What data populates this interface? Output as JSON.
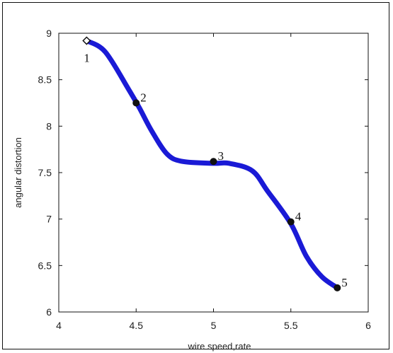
{
  "chart_data": {
    "type": "line",
    "title": "",
    "xlabel": "wire speed,rate",
    "ylabel": "angular distortion",
    "xlim": [
      4,
      6
    ],
    "ylim": [
      6,
      9
    ],
    "xticks": [
      "4",
      "4.5",
      "5",
      "5.5",
      "6"
    ],
    "yticks": [
      "6",
      "6.5",
      "7",
      "7.5",
      "8",
      "8.5",
      "9"
    ],
    "grid": false,
    "series": [
      {
        "color": "#1a1ad6",
        "x": [
          4.18,
          4.3,
          4.45,
          4.52,
          4.6,
          4.7,
          4.8,
          5.0,
          5.1,
          5.25,
          5.35,
          5.5,
          5.6,
          5.7,
          5.8
        ],
        "y": [
          8.92,
          8.8,
          8.4,
          8.2,
          7.95,
          7.7,
          7.62,
          7.6,
          7.6,
          7.52,
          7.3,
          6.95,
          6.6,
          6.38,
          6.26
        ]
      }
    ],
    "points": [
      {
        "label": "1",
        "x": 4.18,
        "y": 8.92,
        "marker": "open-diamond"
      },
      {
        "label": "2",
        "x": 4.5,
        "y": 8.25,
        "marker": "filled-circle"
      },
      {
        "label": "3",
        "x": 5.0,
        "y": 7.62,
        "marker": "filled-circle"
      },
      {
        "label": "4",
        "x": 5.5,
        "y": 6.97,
        "marker": "filled-circle"
      },
      {
        "label": "5",
        "x": 5.8,
        "y": 6.26,
        "marker": "filled-circle"
      }
    ]
  }
}
